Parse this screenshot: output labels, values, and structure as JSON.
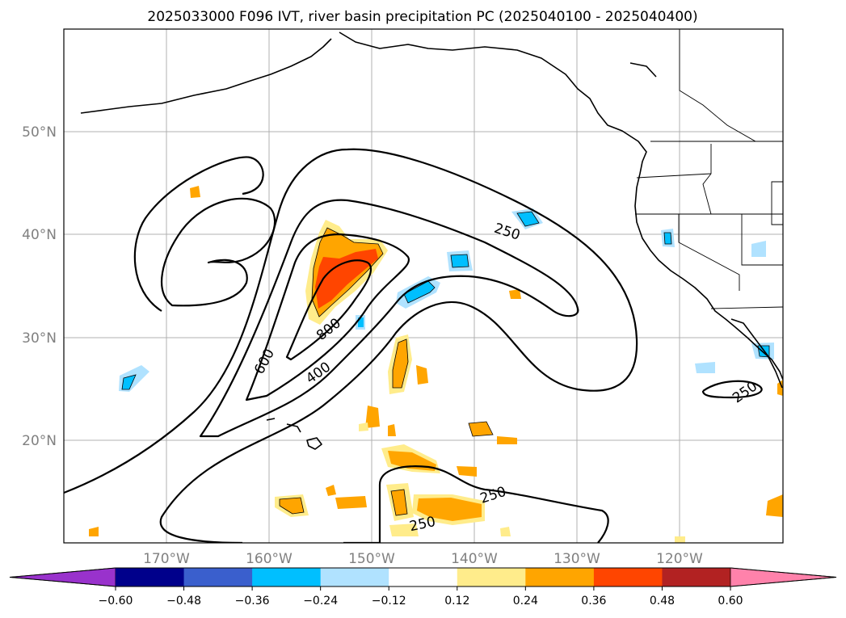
{
  "title": "2025033000 F096 IVT, river basin precipitation PC (2025040100 - 2025040400)",
  "map": {
    "lat_labels": [
      "50°N",
      "40°N",
      "30°N",
      "20°N"
    ],
    "lon_labels": [
      "170°W",
      "160°W",
      "150°W",
      "140°W",
      "130°W",
      "120°W"
    ],
    "lat_range": [
      10,
      60
    ],
    "lon_range": [
      -180,
      -110
    ],
    "gridlines": true
  },
  "contour_labels": [
    "250",
    "250",
    "250",
    "250",
    "600",
    "800",
    "400"
  ],
  "colorbar": {
    "ticks": [
      "−0.60",
      "−0.48",
      "−0.36",
      "−0.24",
      "−0.12",
      "0.12",
      "0.24",
      "0.36",
      "0.48",
      "0.60"
    ],
    "colors": [
      "#9932cc",
      "#00008b",
      "#3a5fcd",
      "#00bfff",
      "#b0e2ff",
      "#ffffff",
      "#ffec8b",
      "#ffa500",
      "#ff4500",
      "#b22222",
      "#ff82ab"
    ],
    "extend": "both"
  }
}
